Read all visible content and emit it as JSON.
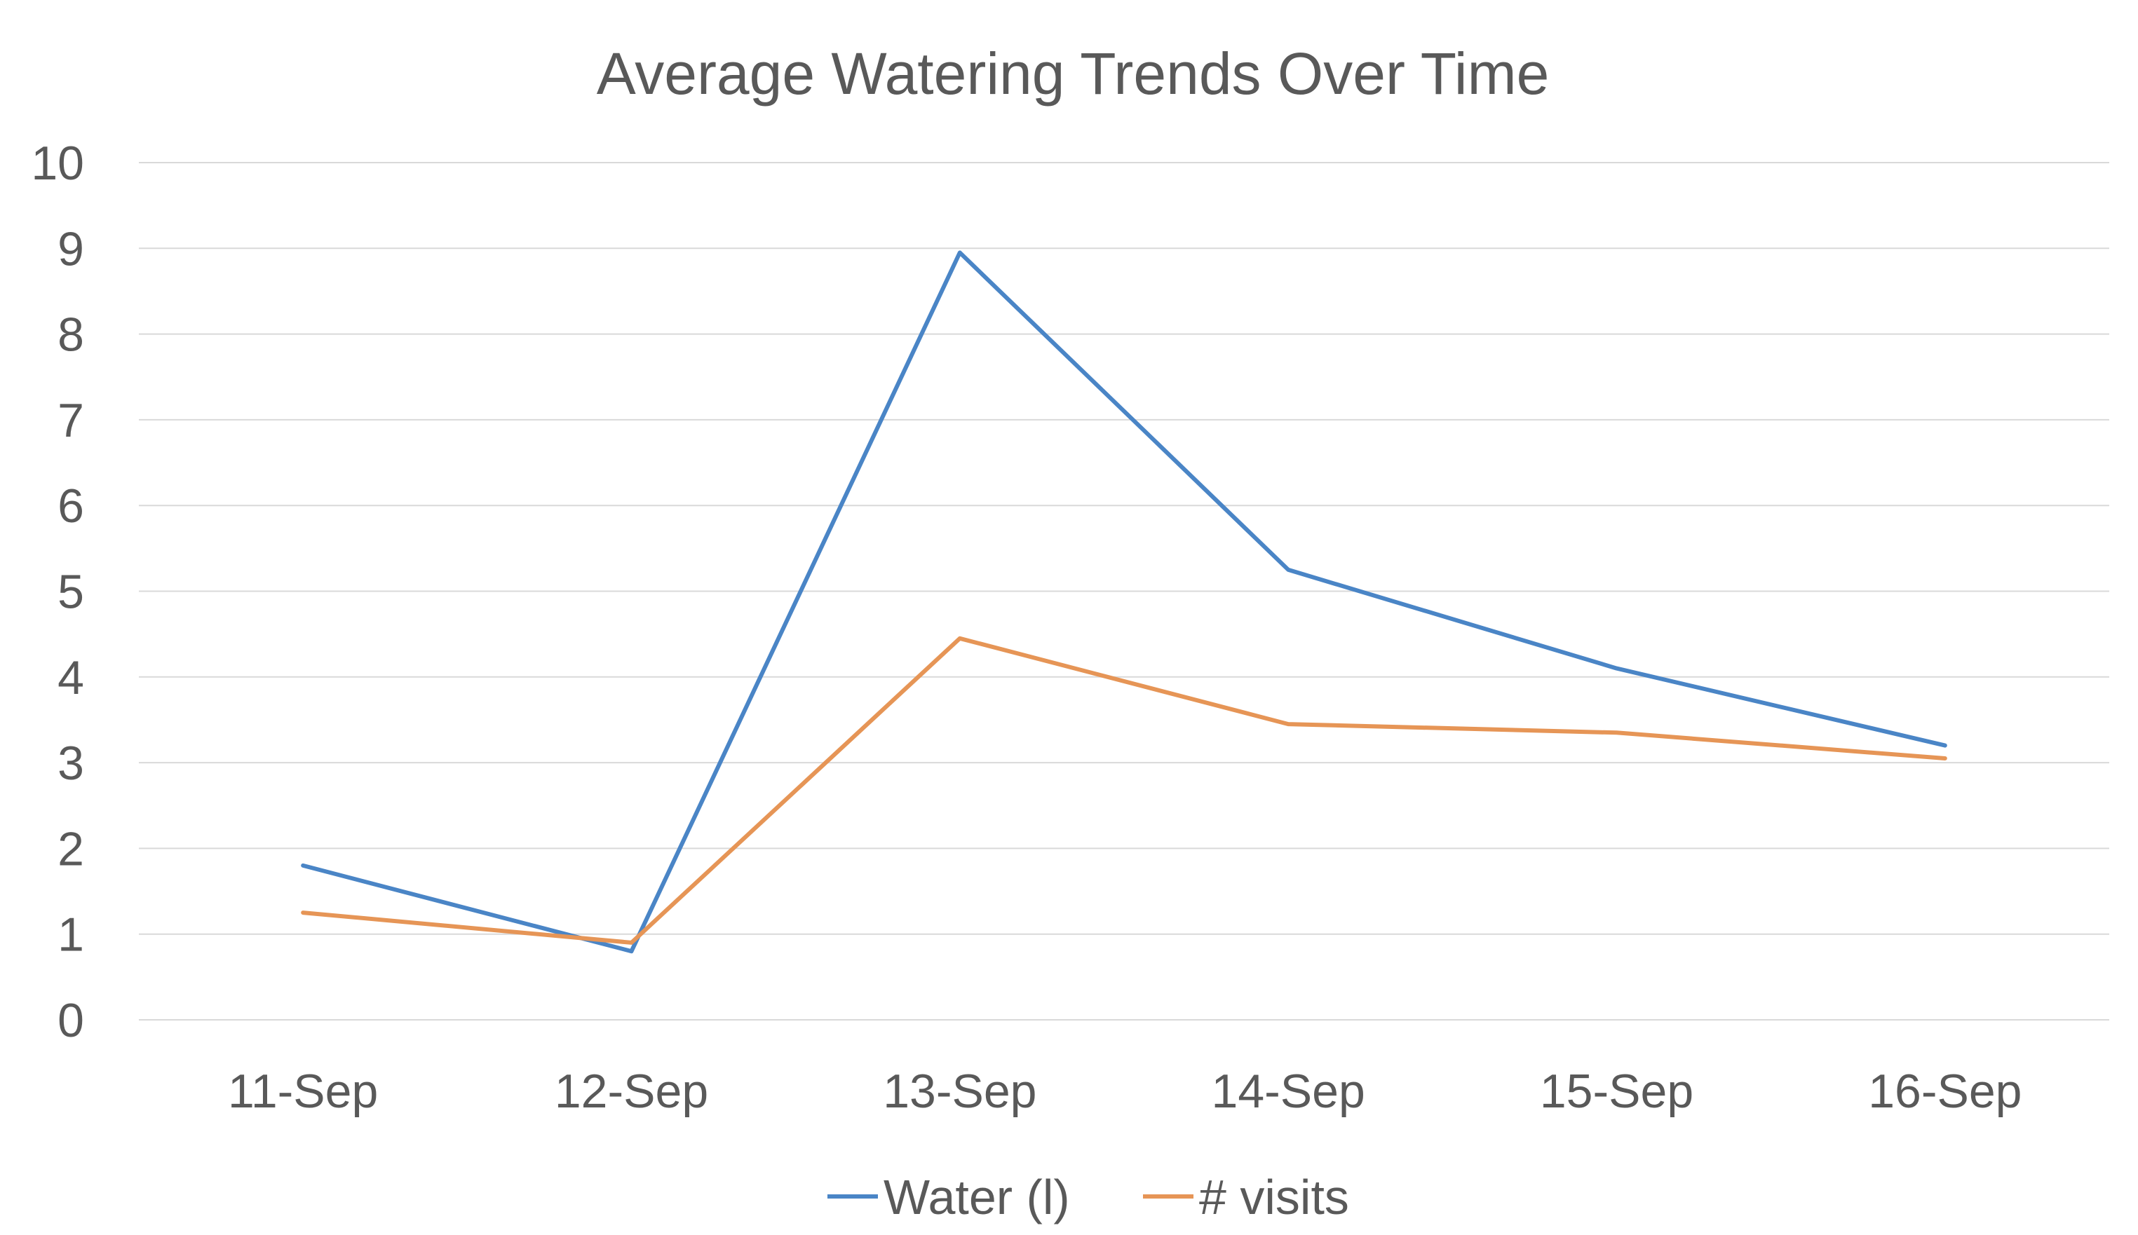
{
  "chart_data": {
    "type": "line",
    "title": "Average Watering Trends Over Time",
    "xlabel": "",
    "ylabel": "",
    "categories": [
      "11-Sep",
      "12-Sep",
      "13-Sep",
      "14-Sep",
      "15-Sep",
      "16-Sep"
    ],
    "ylim": [
      0,
      10
    ],
    "yticks": [
      0,
      1,
      2,
      3,
      4,
      5,
      6,
      7,
      8,
      9,
      10
    ],
    "grid": true,
    "legend_position": "bottom",
    "series": [
      {
        "name": "Water (l)",
        "color": "#4A85C6",
        "values": [
          1.8,
          0.8,
          8.95,
          5.25,
          4.1,
          3.2
        ]
      },
      {
        "name": "# visits",
        "color": "#E69556",
        "values": [
          1.25,
          0.9,
          4.45,
          3.45,
          3.35,
          3.05
        ]
      }
    ]
  }
}
